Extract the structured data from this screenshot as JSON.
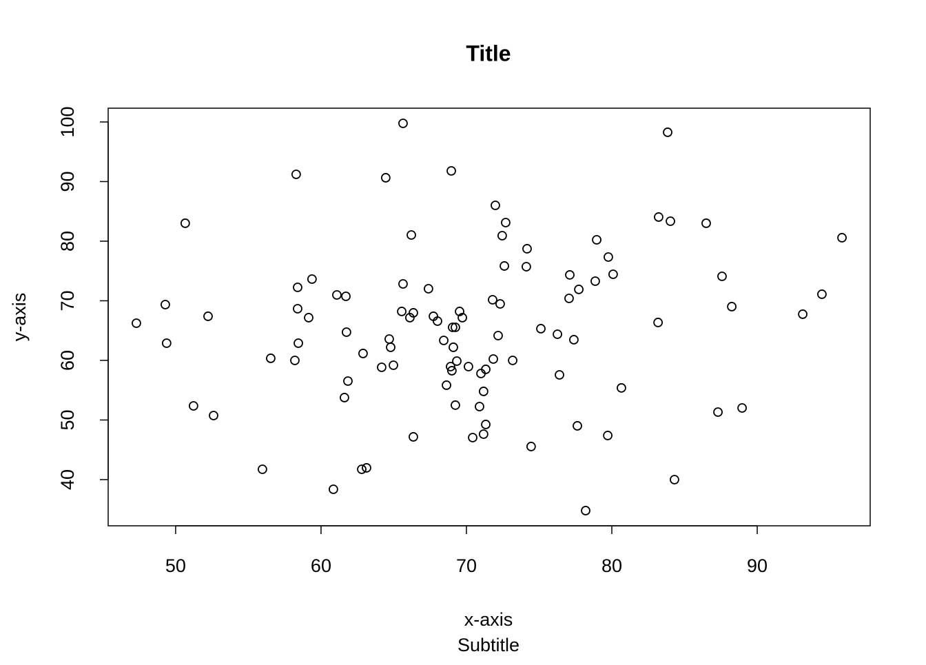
{
  "chart_data": {
    "type": "scatter",
    "title": "Title",
    "subtitle": "Subtitle",
    "x_label": "x-axis",
    "y_label": "y-axis",
    "color": "#000000",
    "x": [
      47.3,
      49.29,
      49.38,
      50.66,
      51.23,
      52.23,
      52.61,
      55.97,
      56.54,
      58.2,
      58.29,
      58.39,
      58.39,
      58.44,
      59.15,
      59.38,
      60.85,
      61.09,
      61.61,
      61.71,
      61.75,
      61.85,
      62.8,
      62.89,
      63.13,
      64.17,
      64.45,
      64.69,
      64.79,
      64.98,
      65.55,
      65.64,
      65.64,
      66.11,
      66.21,
      66.35,
      66.35,
      67.39,
      67.73,
      68.01,
      68.44,
      68.63,
      68.96,
      68.91,
      69.0,
      69.05,
      69.1,
      69.24,
      69.24,
      69.34,
      69.53,
      69.72,
      70.14,
      70.43,
      70.9,
      71.0,
      71.18,
      71.18,
      71.33,
      71.33,
      71.8,
      71.85,
      71.99,
      72.18,
      72.32,
      72.46,
      72.61,
      72.7,
      73.18,
      74.12,
      74.17,
      74.45,
      75.12,
      76.26,
      76.4,
      77.06,
      77.11,
      77.39,
      77.63,
      77.73,
      78.2,
      78.86,
      78.96,
      79.72,
      79.76,
      80.09,
      80.66,
      83.18,
      83.22,
      83.84,
      84.03,
      84.31,
      86.49,
      87.3,
      87.58,
      88.25,
      88.96,
      93.13,
      94.45,
      95.83
    ],
    "y": [
      66.24,
      69.36,
      62.89,
      83.01,
      52.37,
      67.4,
      50.75,
      41.73,
      60.35,
      60.0,
      91.21,
      72.25,
      68.67,
      62.89,
      67.17,
      73.64,
      38.38,
      70.98,
      53.76,
      70.75,
      64.74,
      56.53,
      41.73,
      61.16,
      41.97,
      58.84,
      90.64,
      63.58,
      62.2,
      59.19,
      68.21,
      72.83,
      99.77,
      67.17,
      81.04,
      67.98,
      47.17,
      72.02,
      67.4,
      66.59,
      63.35,
      55.84,
      91.79,
      58.96,
      58.27,
      65.55,
      62.2,
      65.55,
      52.49,
      59.88,
      68.21,
      67.17,
      58.96,
      47.05,
      52.25,
      57.8,
      54.8,
      47.63,
      58.5,
      49.25,
      70.17,
      60.23,
      86.01,
      64.16,
      69.48,
      80.92,
      75.84,
      83.12,
      60.0,
      75.72,
      78.73,
      45.55,
      65.32,
      64.39,
      57.57,
      70.4,
      74.34,
      63.47,
      49.02,
      71.91,
      34.8,
      73.29,
      80.23,
      47.4,
      77.34,
      74.45,
      55.38,
      66.36,
      84.05,
      98.27,
      83.35,
      40.0,
      83.01,
      51.33,
      74.1,
      69.02,
      52.02,
      67.75,
      71.1,
      80.58
    ],
    "xlim": [
      45.36,
      97.77
    ],
    "ylim": [
      32.25,
      102.31
    ],
    "xticks": [
      50,
      60,
      70,
      80,
      90
    ],
    "yticks": [
      40,
      50,
      60,
      70,
      80,
      90,
      100
    ]
  }
}
